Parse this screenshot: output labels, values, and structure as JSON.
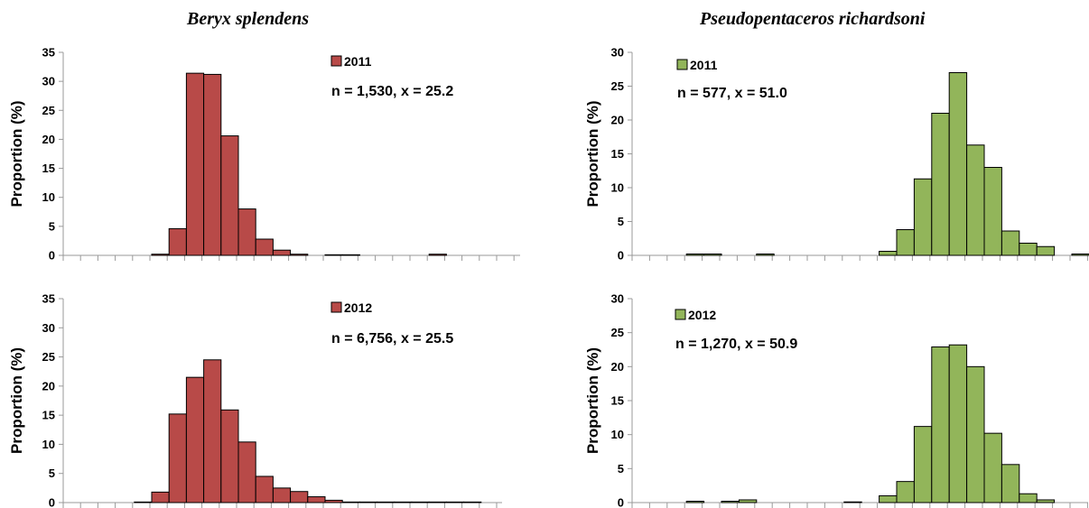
{
  "titles": {
    "left": "Beryx splendens",
    "right": "Pseudopentaceros richardsoni"
  },
  "colors": {
    "beryx": "#b84a48",
    "pseudo": "#92b55a",
    "stroke": "#000000"
  },
  "chart_data": [
    {
      "type": "bar",
      "species": "Beryx splendens",
      "legend": "2011",
      "annotation": "n = 1,530, x = 25.2",
      "ylabel": "Proportion (%)",
      "ylim": [
        0,
        35
      ],
      "yticks": [
        0,
        5,
        10,
        15,
        20,
        25,
        30,
        35
      ],
      "values": [
        0,
        0,
        0,
        0,
        0,
        0.2,
        4.6,
        31.4,
        31.2,
        20.6,
        8.0,
        2.8,
        0.9,
        0.2,
        0,
        0.1,
        0.1,
        0,
        0,
        0,
        0,
        0.2,
        0,
        0,
        0
      ]
    },
    {
      "type": "bar",
      "species": "Beryx splendens",
      "legend": "2012",
      "annotation": "n = 6,756, x = 25.5",
      "ylabel": "Proportion (%)",
      "ylim": [
        0,
        35
      ],
      "yticks": [
        0,
        5,
        10,
        15,
        20,
        25,
        30,
        35
      ],
      "values": [
        0,
        0,
        0,
        0,
        0.1,
        1.8,
        15.2,
        21.5,
        24.5,
        15.9,
        10.4,
        4.5,
        2.5,
        1.9,
        1.0,
        0.4,
        0.1,
        0.1,
        0.1,
        0.1,
        0.1,
        0.1,
        0.1,
        0.1,
        0
      ]
    },
    {
      "type": "bar",
      "species": "Pseudopentaceros richardsoni",
      "legend": "2011",
      "annotation": "n = 577, x = 51.0",
      "ylabel": "Proportion (%)",
      "ylim": [
        0,
        30
      ],
      "yticks": [
        0,
        5,
        10,
        15,
        20,
        25,
        30
      ],
      "values": [
        0,
        0,
        0,
        0.2,
        0.2,
        0,
        0,
        0.2,
        0,
        0,
        0,
        0,
        0,
        0,
        0.6,
        3.8,
        11.3,
        21.0,
        27.0,
        16.3,
        13.0,
        3.6,
        1.8,
        1.3,
        0,
        0.2,
        0
      ]
    },
    {
      "type": "bar",
      "species": "Pseudopentaceros richardsoni",
      "legend": "2012",
      "annotation": "n = 1,270, x = 50.9",
      "ylabel": "Proportion (%)",
      "ylim": [
        0,
        30
      ],
      "yticks": [
        0,
        5,
        10,
        15,
        20,
        25,
        30
      ],
      "values": [
        0,
        0,
        0,
        0.2,
        0,
        0.2,
        0.4,
        0,
        0,
        0,
        0,
        0,
        0.1,
        0,
        1.0,
        3.1,
        11.2,
        22.9,
        23.2,
        20.0,
        10.2,
        5.6,
        1.3,
        0.4,
        0,
        0,
        0
      ]
    }
  ]
}
